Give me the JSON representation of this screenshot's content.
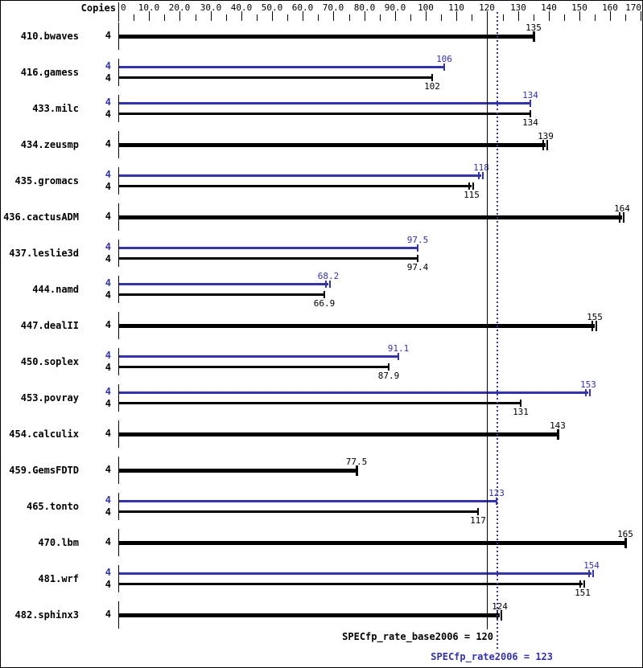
{
  "chart_data": {
    "type": "bar",
    "orientation": "horizontal",
    "title": "",
    "copies_header": "Copies",
    "xlabel": "",
    "xlim": [
      0,
      170
    ],
    "grid": false,
    "axis_ticks": [
      {
        "value": 0,
        "label": "0"
      },
      {
        "value": 10,
        "label": "10.0"
      },
      {
        "value": 20,
        "label": "20.0"
      },
      {
        "value": 30,
        "label": "30.0"
      },
      {
        "value": 40,
        "label": "40.0"
      },
      {
        "value": 50,
        "label": "50.0"
      },
      {
        "value": 60,
        "label": "60.0"
      },
      {
        "value": 70,
        "label": "70.0"
      },
      {
        "value": 80,
        "label": "80.0"
      },
      {
        "value": 90,
        "label": "90.0"
      },
      {
        "value": 100,
        "label": "100"
      },
      {
        "value": 110,
        "label": "110"
      },
      {
        "value": 120,
        "label": "120"
      },
      {
        "value": 130,
        "label": "130"
      },
      {
        "value": 140,
        "label": "140"
      },
      {
        "value": 150,
        "label": "150"
      },
      {
        "value": 160,
        "label": "160"
      },
      {
        "value": 170,
        "label": "170"
      }
    ],
    "minor_tick_step": 5,
    "series_colors": {
      "base": "#000000",
      "peak": "#3333aa"
    },
    "benchmarks": [
      {
        "name": "410.bwaves",
        "copies": 4,
        "bars": [
          {
            "kind": "base",
            "value": 135,
            "label": "135",
            "double_cap": false
          }
        ]
      },
      {
        "name": "416.gamess",
        "copies": 4,
        "bars": [
          {
            "kind": "peak",
            "value": 106,
            "label": "106",
            "double_cap": false
          },
          {
            "kind": "base",
            "value": 102,
            "label": "102",
            "double_cap": false
          }
        ]
      },
      {
        "name": "433.milc",
        "copies": 4,
        "bars": [
          {
            "kind": "peak",
            "value": 134,
            "label": "134",
            "double_cap": false
          },
          {
            "kind": "base",
            "value": 134,
            "label": "134",
            "double_cap": false
          }
        ]
      },
      {
        "name": "434.zeusmp",
        "copies": 4,
        "bars": [
          {
            "kind": "base",
            "value": 139,
            "label": "139",
            "double_cap": true
          }
        ]
      },
      {
        "name": "435.gromacs",
        "copies": 4,
        "bars": [
          {
            "kind": "peak",
            "value": 118,
            "label": "118",
            "double_cap": true
          },
          {
            "kind": "base",
            "value": 115,
            "label": "115",
            "double_cap": true
          }
        ]
      },
      {
        "name": "436.cactusADM",
        "copies": 4,
        "bars": [
          {
            "kind": "base",
            "value": 164,
            "label": "164",
            "double_cap": true
          }
        ]
      },
      {
        "name": "437.leslie3d",
        "copies": 4,
        "bars": [
          {
            "kind": "peak",
            "value": 97.5,
            "label": "97.5",
            "double_cap": false
          },
          {
            "kind": "base",
            "value": 97.4,
            "label": "97.4",
            "double_cap": false
          }
        ]
      },
      {
        "name": "444.namd",
        "copies": 4,
        "bars": [
          {
            "kind": "peak",
            "value": 68.2,
            "label": "68.2",
            "double_cap": true
          },
          {
            "kind": "base",
            "value": 66.9,
            "label": "66.9",
            "double_cap": false
          }
        ]
      },
      {
        "name": "447.dealII",
        "copies": 4,
        "bars": [
          {
            "kind": "base",
            "value": 155,
            "label": "155",
            "double_cap": true
          }
        ]
      },
      {
        "name": "450.soplex",
        "copies": 4,
        "bars": [
          {
            "kind": "peak",
            "value": 91.1,
            "label": "91.1",
            "double_cap": false
          },
          {
            "kind": "base",
            "value": 87.9,
            "label": "87.9",
            "double_cap": false
          }
        ]
      },
      {
        "name": "453.povray",
        "copies": 4,
        "bars": [
          {
            "kind": "peak",
            "value": 153,
            "label": "153",
            "double_cap": true
          },
          {
            "kind": "base",
            "value": 131,
            "label": "131",
            "double_cap": false
          }
        ]
      },
      {
        "name": "454.calculix",
        "copies": 4,
        "bars": [
          {
            "kind": "base",
            "value": 143,
            "label": "143",
            "double_cap": false
          }
        ]
      },
      {
        "name": "459.GemsFDTD",
        "copies": 4,
        "bars": [
          {
            "kind": "base",
            "value": 77.5,
            "label": "77.5",
            "double_cap": false
          }
        ]
      },
      {
        "name": "465.tonto",
        "copies": 4,
        "bars": [
          {
            "kind": "peak",
            "value": 123,
            "label": "123",
            "double_cap": false
          },
          {
            "kind": "base",
            "value": 117,
            "label": "117",
            "double_cap": false
          }
        ]
      },
      {
        "name": "470.lbm",
        "copies": 4,
        "bars": [
          {
            "kind": "base",
            "value": 165,
            "label": "165",
            "double_cap": false
          }
        ]
      },
      {
        "name": "481.wrf",
        "copies": 4,
        "bars": [
          {
            "kind": "peak",
            "value": 154,
            "label": "154",
            "double_cap": true
          },
          {
            "kind": "base",
            "value": 151,
            "label": "151",
            "double_cap": true
          }
        ]
      },
      {
        "name": "482.sphinx3",
        "copies": 4,
        "bars": [
          {
            "kind": "base",
            "value": 124,
            "label": "124",
            "double_cap": true
          }
        ]
      }
    ],
    "reference_lines": [
      {
        "id": "base",
        "style": "solid",
        "color": "#000000",
        "value": 120,
        "label": "SPECfp_rate_base2006 = 120"
      },
      {
        "id": "peak",
        "style": "dotted",
        "color": "#3333aa",
        "value": 123,
        "label": "SPECfp_rate2006 = 123"
      }
    ]
  }
}
